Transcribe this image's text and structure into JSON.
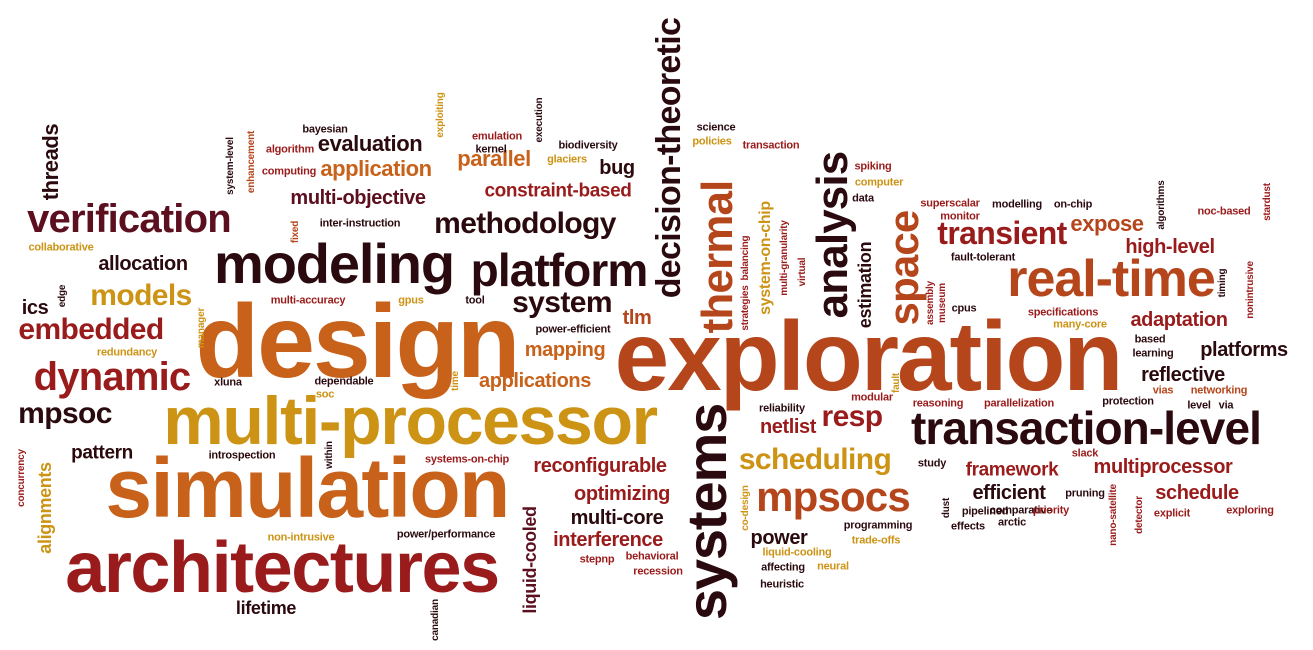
{
  "colors": {
    "dark": "#2a0a0f",
    "maroon": "#5c0f1e",
    "red": "#9a1b1b",
    "rust": "#b5451b",
    "orange": "#c8611a",
    "gold": "#cc9314"
  },
  "words": [
    {
      "text": "exploration",
      "color": "rust"
    },
    {
      "text": "design",
      "color": "orange"
    },
    {
      "text": "simulation",
      "color": "orange"
    },
    {
      "text": "multi-processor",
      "color": "gold"
    },
    {
      "text": "architectures",
      "color": "red"
    },
    {
      "text": "systems",
      "color": "dark"
    },
    {
      "text": "transaction-level",
      "color": "dark"
    },
    {
      "text": "real-time",
      "color": "rust"
    },
    {
      "text": "modeling",
      "color": "dark"
    },
    {
      "text": "platform",
      "color": "dark"
    },
    {
      "text": "decision-theoretic",
      "color": "dark"
    },
    {
      "text": "thermal",
      "color": "rust"
    },
    {
      "text": "analysis",
      "color": "dark"
    },
    {
      "text": "space",
      "color": "rust"
    },
    {
      "text": "verification",
      "color": "maroon"
    },
    {
      "text": "mpsocs",
      "color": "rust"
    },
    {
      "text": "dynamic",
      "color": "red"
    },
    {
      "text": "embedded",
      "color": "red"
    },
    {
      "text": "methodology",
      "color": "dark"
    },
    {
      "text": "transient",
      "color": "red"
    },
    {
      "text": "scheduling",
      "color": "gold"
    },
    {
      "text": "system",
      "color": "dark"
    },
    {
      "text": "mpsoc",
      "color": "dark"
    },
    {
      "text": "models",
      "color": "gold"
    },
    {
      "text": "resp",
      "color": "red"
    },
    {
      "text": "liquid-cooled",
      "color": "maroon"
    },
    {
      "text": "threads",
      "color": "dark"
    },
    {
      "text": "allocation",
      "color": "dark"
    },
    {
      "text": "evaluation",
      "color": "dark"
    },
    {
      "text": "application",
      "color": "orange"
    },
    {
      "text": "multi-objective",
      "color": "maroon"
    },
    {
      "text": "parallel",
      "color": "orange"
    },
    {
      "text": "constraint-based",
      "color": "red"
    },
    {
      "text": "bug",
      "color": "dark"
    },
    {
      "text": "expose",
      "color": "rust"
    },
    {
      "text": "high-level",
      "color": "red"
    },
    {
      "text": "adaptation",
      "color": "red"
    },
    {
      "text": "platforms",
      "color": "dark"
    },
    {
      "text": "reflective",
      "color": "dark"
    },
    {
      "text": "system-on-chip",
      "color": "gold"
    },
    {
      "text": "estimation",
      "color": "dark"
    },
    {
      "text": "reconfigurable",
      "color": "red"
    },
    {
      "text": "optimizing",
      "color": "red"
    },
    {
      "text": "multi-core",
      "color": "dark"
    },
    {
      "text": "interference",
      "color": "red"
    },
    {
      "text": "mapping",
      "color": "orange"
    },
    {
      "text": "applications",
      "color": "orange"
    },
    {
      "text": "framework",
      "color": "red"
    },
    {
      "text": "multiprocessor",
      "color": "red"
    },
    {
      "text": "efficient",
      "color": "dark"
    },
    {
      "text": "schedule",
      "color": "red"
    },
    {
      "text": "netlist",
      "color": "red"
    },
    {
      "text": "power",
      "color": "dark"
    },
    {
      "text": "tlm",
      "color": "rust"
    },
    {
      "text": "alignments",
      "color": "gold"
    },
    {
      "text": "pattern",
      "color": "dark"
    },
    {
      "text": "lifetime",
      "color": "dark"
    },
    {
      "text": "ics",
      "color": "dark"
    },
    {
      "text": "bayesian",
      "color": "dark"
    },
    {
      "text": "algorithm",
      "color": "red"
    },
    {
      "text": "computing",
      "color": "red"
    },
    {
      "text": "system-level",
      "color": "dark"
    },
    {
      "text": "enhancement",
      "color": "rust"
    },
    {
      "text": "exploiting",
      "color": "gold"
    },
    {
      "text": "emulation",
      "color": "red"
    },
    {
      "text": "kernel",
      "color": "dark"
    },
    {
      "text": "execution",
      "color": "dark"
    },
    {
      "text": "biodiversity",
      "color": "dark"
    },
    {
      "text": "glaciers",
      "color": "gold"
    },
    {
      "text": "science",
      "color": "dark"
    },
    {
      "text": "policies",
      "color": "gold"
    },
    {
      "text": "transaction",
      "color": "red"
    },
    {
      "text": "inter-instruction",
      "color": "dark"
    },
    {
      "text": "fixed",
      "color": "rust"
    },
    {
      "text": "collaborative",
      "color": "gold"
    },
    {
      "text": "multi-accuracy",
      "color": "red"
    },
    {
      "text": "gpus",
      "color": "gold"
    },
    {
      "text": "tool",
      "color": "dark"
    },
    {
      "text": "power-efficient",
      "color": "dark"
    },
    {
      "text": "edge",
      "color": "dark"
    },
    {
      "text": "manager",
      "color": "gold"
    },
    {
      "text": "redundancy",
      "color": "gold"
    },
    {
      "text": "xluna",
      "color": "dark"
    },
    {
      "text": "dependable",
      "color": "dark"
    },
    {
      "text": "soc",
      "color": "gold"
    },
    {
      "text": "time",
      "color": "gold"
    },
    {
      "text": "introspection",
      "color": "dark"
    },
    {
      "text": "within",
      "color": "dark"
    },
    {
      "text": "systems-on-chip",
      "color": "red"
    },
    {
      "text": "concurrency",
      "color": "red"
    },
    {
      "text": "non-intrusive",
      "color": "gold"
    },
    {
      "text": "power/performance",
      "color": "dark"
    },
    {
      "text": "canadian",
      "color": "dark"
    },
    {
      "text": "stepnp",
      "color": "red"
    },
    {
      "text": "behavioral",
      "color": "red"
    },
    {
      "text": "recession",
      "color": "red"
    },
    {
      "text": "spiking",
      "color": "red"
    },
    {
      "text": "computer",
      "color": "gold"
    },
    {
      "text": "data",
      "color": "dark"
    },
    {
      "text": "superscalar",
      "color": "red"
    },
    {
      "text": "modelling",
      "color": "dark"
    },
    {
      "text": "on-chip",
      "color": "dark"
    },
    {
      "text": "monitor",
      "color": "red"
    },
    {
      "text": "algorithms",
      "color": "dark"
    },
    {
      "text": "noc-based",
      "color": "red"
    },
    {
      "text": "stardust",
      "color": "red"
    },
    {
      "text": "fault-tolerant",
      "color": "dark"
    },
    {
      "text": "balancing",
      "color": "red"
    },
    {
      "text": "multi-granularity",
      "color": "red"
    },
    {
      "text": "virtual",
      "color": "red"
    },
    {
      "text": "strategies",
      "color": "red"
    },
    {
      "text": "timing",
      "color": "dark"
    },
    {
      "text": "nonintrusive",
      "color": "red"
    },
    {
      "text": "assembly",
      "color": "red"
    },
    {
      "text": "museum",
      "color": "red"
    },
    {
      "text": "cpus",
      "color": "dark"
    },
    {
      "text": "specifications",
      "color": "red"
    },
    {
      "text": "many-core",
      "color": "gold"
    },
    {
      "text": "based",
      "color": "dark"
    },
    {
      "text": "learning",
      "color": "dark"
    },
    {
      "text": "fault",
      "color": "gold"
    },
    {
      "text": "modular",
      "color": "red"
    },
    {
      "text": "reasoning",
      "color": "red"
    },
    {
      "text": "parallelization",
      "color": "red"
    },
    {
      "text": "protection",
      "color": "dark"
    },
    {
      "text": "vias",
      "color": "rust"
    },
    {
      "text": "networking",
      "color": "rust"
    },
    {
      "text": "level",
      "color": "dark"
    },
    {
      "text": "via",
      "color": "dark"
    },
    {
      "text": "reliability",
      "color": "dark"
    },
    {
      "text": "study",
      "color": "dark"
    },
    {
      "text": "slack",
      "color": "red"
    },
    {
      "text": "comparative",
      "color": "dark"
    },
    {
      "text": "dust",
      "color": "dark"
    },
    {
      "text": "pruning",
      "color": "dark"
    },
    {
      "text": "nano-satellite",
      "color": "red"
    },
    {
      "text": "detector",
      "color": "red"
    },
    {
      "text": "explicit",
      "color": "red"
    },
    {
      "text": "exploring",
      "color": "red"
    },
    {
      "text": "pipelined",
      "color": "dark"
    },
    {
      "text": "priority",
      "color": "red"
    },
    {
      "text": "effects",
      "color": "dark"
    },
    {
      "text": "arctic",
      "color": "dark"
    },
    {
      "text": "co-design",
      "color": "gold"
    },
    {
      "text": "programming",
      "color": "dark"
    },
    {
      "text": "trade-offs",
      "color": "gold"
    },
    {
      "text": "liquid-cooling",
      "color": "gold"
    },
    {
      "text": "affecting",
      "color": "dark"
    },
    {
      "text": "neural",
      "color": "gold"
    },
    {
      "text": "heuristic",
      "color": "dark"
    }
  ]
}
